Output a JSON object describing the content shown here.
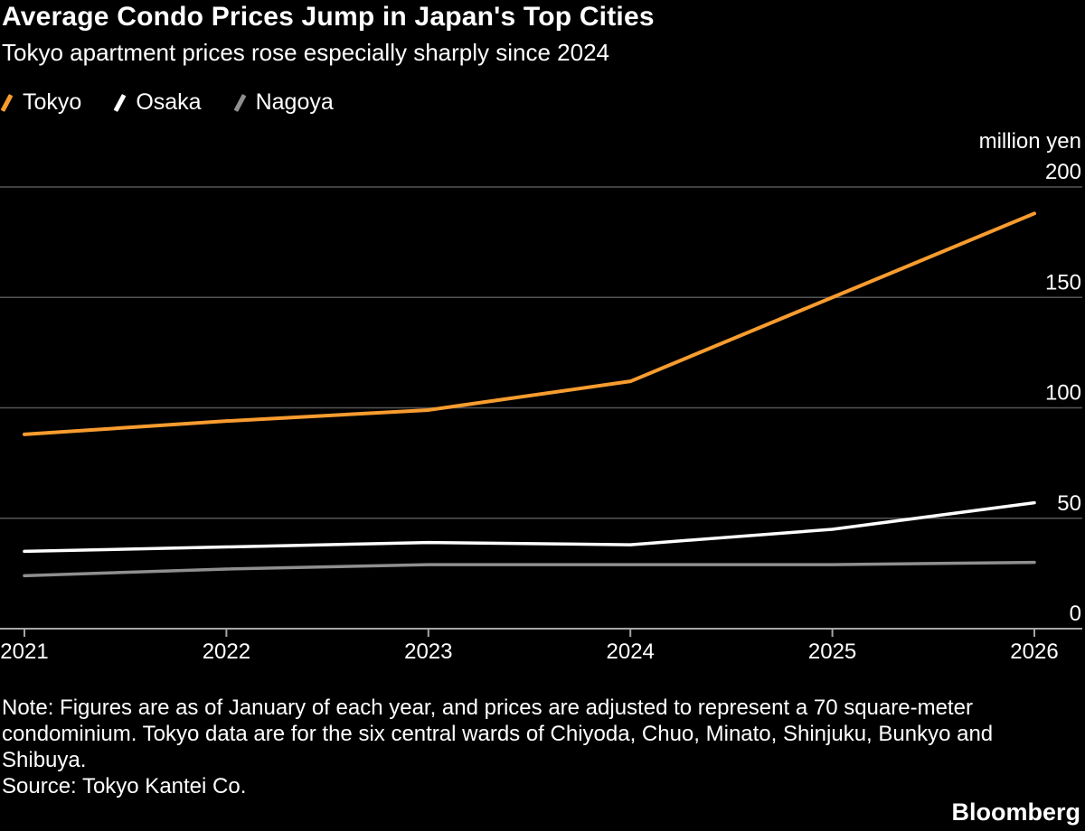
{
  "header": {
    "title": "Average Condo Prices Jump in Japan's Top Cities",
    "subtitle": "Tokyo apartment prices rose especially sharply since 2024"
  },
  "legend": {
    "items": [
      {
        "label": "Tokyo",
        "color": "#f89c2f"
      },
      {
        "label": "Osaka",
        "color": "#ffffff"
      },
      {
        "label": "Nagoya",
        "color": "#8f8f8f"
      }
    ]
  },
  "chart_data": {
    "type": "line",
    "x": [
      2021,
      2022,
      2023,
      2024,
      2025,
      2026
    ],
    "series": [
      {
        "name": "Tokyo",
        "color": "#f89c2f",
        "width": 4,
        "values": [
          88,
          94,
          99,
          112,
          150,
          188
        ]
      },
      {
        "name": "Osaka",
        "color": "#ffffff",
        "width": 3.5,
        "values": [
          35,
          37,
          39,
          38,
          45,
          57
        ]
      },
      {
        "name": "Nagoya",
        "color": "#8f8f8f",
        "width": 3.5,
        "values": [
          24,
          27,
          29,
          29,
          29,
          30
        ]
      }
    ],
    "title": "Average Condo Prices Jump in Japan's Top Cities",
    "subtitle": "Tokyo apartment prices rose especially sharply since 2024",
    "xlabel": "",
    "ylabel": "million yen",
    "yticks": [
      0,
      50,
      100,
      150,
      200
    ],
    "ylim": [
      0,
      200
    ],
    "grid": "horizontal",
    "legend_position": "top-left"
  },
  "footer": {
    "note_lines": [
      "Note: Figures are as of January of each year, and prices are adjusted to represent a 70 square-meter",
      "condominium. Tokyo data are for the six central wards of Chiyoda, Chuo, Minato, Shinjuku, Bunkyo and",
      "Shibuya."
    ],
    "source": "Source: Tokyo Kantei Co.",
    "logo": "Bloomberg"
  },
  "colors": {
    "background": "#000000",
    "grid": "#555555",
    "axis": "#a6a6a6",
    "text": "#ffffff"
  }
}
